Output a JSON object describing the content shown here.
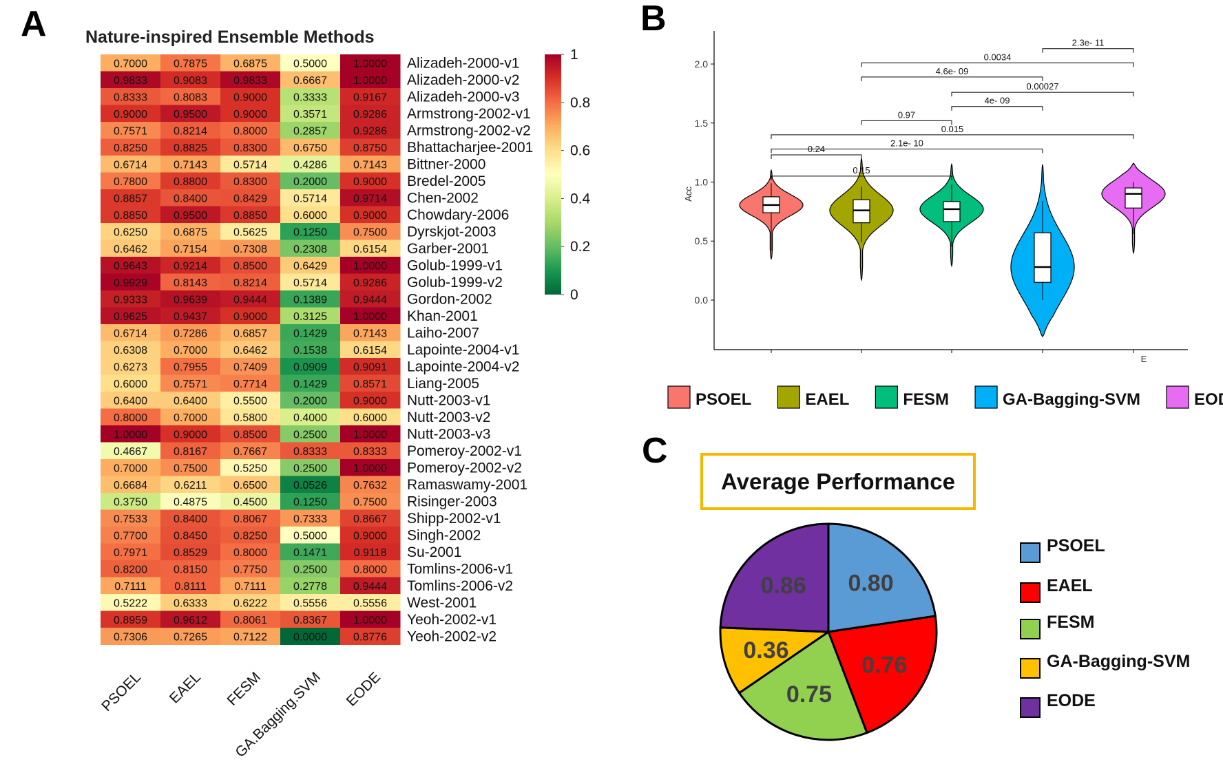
{
  "panels": {
    "A": "A",
    "B": "B",
    "C": "C"
  },
  "chart_data": [
    {
      "type": "heatmap",
      "title": "Nature-inspired Ensemble Methods",
      "columns": [
        "PSOEL",
        "EAEL",
        "FESM",
        "GA.Bagging.SVM",
        "EODE"
      ],
      "rows": [
        "Alizadeh-2000-v1",
        "Alizadeh-2000-v2",
        "Alizadeh-2000-v3",
        "Armstrong-2002-v1",
        "Armstrong-2002-v2",
        "Bhattacharjee-2001",
        "Bittner-2000",
        "Bredel-2005",
        "Chen-2002",
        "Chowdary-2006",
        "Dyrskjot-2003",
        "Garber-2001",
        "Golub-1999-v1",
        "Golub-1999-v2",
        "Gordon-2002",
        "Khan-2001",
        "Laiho-2007",
        "Lapointe-2004-v1",
        "Lapointe-2004-v2",
        "Liang-2005",
        "Nutt-2003-v1",
        "Nutt-2003-v2",
        "Nutt-2003-v3",
        "Pomeroy-2002-v1",
        "Pomeroy-2002-v2",
        "Ramaswamy-2001",
        "Risinger-2003",
        "Shipp-2002-v1",
        "Singh-2002",
        "Su-2001",
        "Tomlins-2006-v1",
        "Tomlins-2006-v2",
        "West-2001",
        "Yeoh-2002-v1",
        "Yeoh-2002-v2"
      ],
      "values": [
        [
          0.7,
          0.7875,
          0.6875,
          0.5,
          1.0
        ],
        [
          0.9833,
          0.9083,
          0.9833,
          0.6667,
          1.0
        ],
        [
          0.8333,
          0.8083,
          0.9,
          0.3333,
          0.9167
        ],
        [
          0.9,
          0.95,
          0.9,
          0.3571,
          0.9286
        ],
        [
          0.7571,
          0.8214,
          0.8,
          0.2857,
          0.9286
        ],
        [
          0.825,
          0.8825,
          0.83,
          0.675,
          0.875
        ],
        [
          0.6714,
          0.7143,
          0.5714,
          0.4286,
          0.7143
        ],
        [
          0.78,
          0.88,
          0.83,
          0.2,
          0.9
        ],
        [
          0.8857,
          0.84,
          0.8429,
          0.5714,
          0.9714
        ],
        [
          0.885,
          0.95,
          0.885,
          0.6,
          0.9
        ],
        [
          0.625,
          0.6875,
          0.5625,
          0.125,
          0.75
        ],
        [
          0.6462,
          0.7154,
          0.7308,
          0.2308,
          0.6154
        ],
        [
          0.9643,
          0.9214,
          0.85,
          0.6429,
          1.0
        ],
        [
          0.9929,
          0.8143,
          0.8214,
          0.5714,
          0.9286
        ],
        [
          0.9333,
          0.9639,
          0.9444,
          0.1389,
          0.9444
        ],
        [
          0.9625,
          0.9437,
          0.9,
          0.3125,
          1.0
        ],
        [
          0.6714,
          0.7286,
          0.6857,
          0.1429,
          0.7143
        ],
        [
          0.6308,
          0.7,
          0.6462,
          0.1538,
          0.6154
        ],
        [
          0.6273,
          0.7955,
          0.7409,
          0.0909,
          0.9091
        ],
        [
          0.6,
          0.7571,
          0.7714,
          0.1429,
          0.8571
        ],
        [
          0.64,
          0.64,
          0.55,
          0.2,
          0.9
        ],
        [
          0.8,
          0.7,
          0.58,
          0.4,
          0.6
        ],
        [
          1.0,
          0.9,
          0.85,
          0.25,
          1.0
        ],
        [
          0.4667,
          0.8167,
          0.7667,
          0.8333,
          0.8333
        ],
        [
          0.7,
          0.75,
          0.525,
          0.25,
          1.0
        ],
        [
          0.6684,
          0.6211,
          0.65,
          0.0526,
          0.7632
        ],
        [
          0.375,
          0.4875,
          0.45,
          0.125,
          0.75
        ],
        [
          0.7533,
          0.84,
          0.8067,
          0.7333,
          0.8667
        ],
        [
          0.77,
          0.845,
          0.825,
          0.5,
          0.9
        ],
        [
          0.7971,
          0.8529,
          0.8,
          0.1471,
          0.9118
        ],
        [
          0.82,
          0.815,
          0.775,
          0.25,
          0.8
        ],
        [
          0.7111,
          0.8111,
          0.7111,
          0.2778,
          0.9444
        ],
        [
          0.5222,
          0.6333,
          0.6222,
          0.5556,
          0.5556
        ],
        [
          0.8959,
          0.9612,
          0.8061,
          0.8367,
          1.0
        ],
        [
          0.7306,
          0.7265,
          0.7122,
          0.0,
          0.8776
        ]
      ],
      "colorbar": {
        "ticks": [
          "1",
          "0.8",
          "0.6",
          "0.4",
          "0.2",
          "0"
        ],
        "range": [
          0,
          1
        ]
      }
    },
    {
      "type": "violin",
      "ylabel": "Acc",
      "y_ticks": [
        "0.0",
        "0.5",
        "1.0",
        "1.5",
        "2.0"
      ],
      "ylim": [
        -0.42,
        2.28
      ],
      "x_tick_labels": [
        "",
        "",
        "",
        "",
        "E"
      ],
      "series": [
        {
          "name": "PSOEL",
          "color": "#F8766D",
          "min": 0.42,
          "q1": 0.74,
          "median": 0.805,
          "q3": 0.875,
          "max": 0.99,
          "violin_min": 0.35,
          "violin_max": 1.1
        },
        {
          "name": "EAEL",
          "color": "#A3A500",
          "min": 0.49,
          "q1": 0.655,
          "median": 0.76,
          "q3": 0.85,
          "max": 0.96,
          "violin_min": 0.17,
          "violin_max": 1.2
        },
        {
          "name": "FESM",
          "color": "#00BF7D",
          "min": 0.45,
          "q1": 0.665,
          "median": 0.77,
          "q3": 0.835,
          "max": 0.98,
          "violin_min": 0.29,
          "violin_max": 1.15
        },
        {
          "name": "GA-Bagging-SVM",
          "color": "#00B0F6",
          "min": 0.0,
          "q1": 0.15,
          "median": 0.28,
          "q3": 0.57,
          "max": 0.84,
          "violin_min": -0.31,
          "violin_max": 1.15
        },
        {
          "name": "EODE",
          "color": "#E76BF3",
          "min": 0.56,
          "q1": 0.78,
          "median": 0.9,
          "q3": 0.95,
          "max": 1.0,
          "violin_min": 0.4,
          "violin_max": 1.16
        }
      ],
      "comparisons": [
        {
          "from": 0,
          "to": 1,
          "label": "0.24",
          "y": 1.23
        },
        {
          "from": 0,
          "to": 2,
          "label": "0.15",
          "y": 1.05
        },
        {
          "from": 0,
          "to": 3,
          "label": "2.1e- 10",
          "y": 1.28
        },
        {
          "from": 0,
          "to": 4,
          "label": "0.015",
          "y": 1.4
        },
        {
          "from": 1,
          "to": 2,
          "label": "0.97",
          "y": 1.52
        },
        {
          "from": 2,
          "to": 3,
          "label": "4e- 09",
          "y": 1.64
        },
        {
          "from": 2,
          "to": 4,
          "label": "0.00027",
          "y": 1.76
        },
        {
          "from": 1,
          "to": 3,
          "label": "4.6e- 09",
          "y": 1.89
        },
        {
          "from": 1,
          "to": 4,
          "label": "0.0034",
          "y": 2.01
        },
        {
          "from": 3,
          "to": 4,
          "label": "2.3e- 11",
          "y": 2.13
        }
      ]
    },
    {
      "type": "pie",
      "title": "Average Performance",
      "slices": [
        {
          "name": "PSOEL",
          "value": 0.8,
          "label": "0.80",
          "color": "#5B9BD5"
        },
        {
          "name": "EAEL",
          "value": 0.76,
          "label": "0.76",
          "color": "#FF0000"
        },
        {
          "name": "FESM",
          "value": 0.75,
          "label": "0.75",
          "color": "#92D050"
        },
        {
          "name": "GA-Bagging-SVM",
          "value": 0.36,
          "label": "0.36",
          "color": "#FFC000"
        },
        {
          "name": "EODE",
          "value": 0.86,
          "label": "0.86",
          "color": "#7030A0"
        }
      ]
    }
  ]
}
